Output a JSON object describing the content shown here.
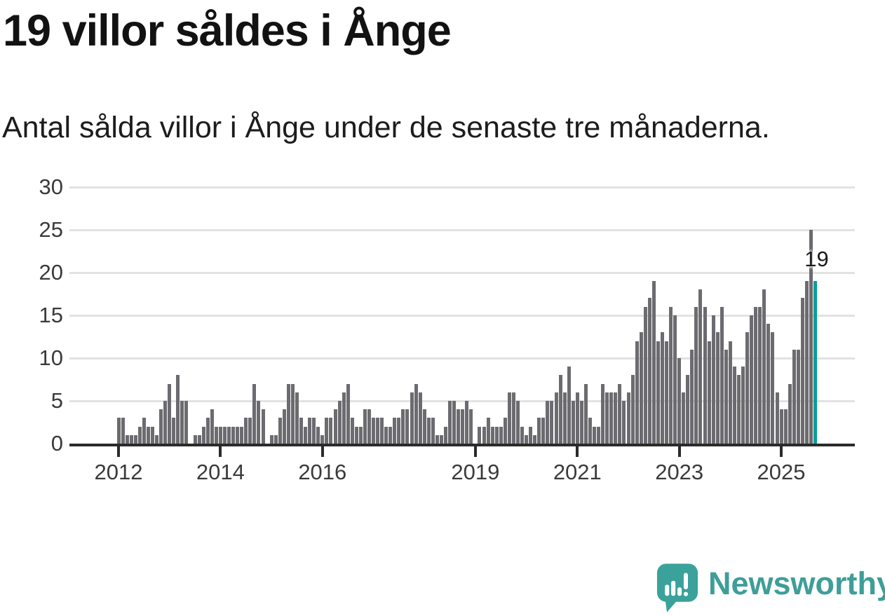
{
  "title": "19 villor såldes i Ånge",
  "subtitle": "Antal sålda villor i Ånge under de senaste tre månaderna.",
  "logo": {
    "wordmark": "Newsworthy"
  },
  "colors": {
    "bar": "#6b6b70",
    "highlight": "#00a19a",
    "gridline": "#e2e2e2",
    "axis": "#2b2b2b",
    "text": "#1c1c1c",
    "tick_text": "#3a3a3a",
    "logo_teal": "#3aa29b"
  },
  "chart_data": {
    "type": "bar",
    "title": "19 villor såldes i Ånge",
    "subtitle": "Antal sålda villor i Ånge under de senaste tre månaderna.",
    "x_start_month": "2012-01",
    "x_end_month": "2025-09",
    "x_unit": "month",
    "ylim": [
      0,
      30
    ],
    "yticks": [
      0,
      5,
      10,
      15,
      20,
      25,
      30
    ],
    "grid": "horizontal",
    "legend": "none",
    "xticks": [
      {
        "label": "2012",
        "month_index": 0
      },
      {
        "label": "2014",
        "month_index": 24
      },
      {
        "label": "2016",
        "month_index": 48
      },
      {
        "label": "2019",
        "month_index": 84
      },
      {
        "label": "2021",
        "month_index": 108
      },
      {
        "label": "2023",
        "month_index": 132
      },
      {
        "label": "2025",
        "month_index": 156
      }
    ],
    "values": [
      3,
      3,
      1,
      1,
      1,
      2,
      3,
      2,
      2,
      1,
      4,
      5,
      7,
      3,
      8,
      5,
      5,
      0,
      1,
      1,
      2,
      3,
      4,
      2,
      2,
      2,
      2,
      2,
      2,
      2,
      3,
      3,
      7,
      5,
      4,
      0,
      1,
      1,
      3,
      4,
      7,
      7,
      6,
      3,
      2,
      3,
      3,
      2,
      1,
      3,
      3,
      4,
      5,
      6,
      7,
      3,
      2,
      2,
      4,
      4,
      3,
      3,
      3,
      2,
      2,
      3,
      3,
      4,
      4,
      6,
      7,
      6,
      4,
      3,
      3,
      1,
      1,
      2,
      5,
      5,
      4,
      4,
      5,
      4,
      0,
      2,
      2,
      3,
      2,
      2,
      2,
      3,
      6,
      6,
      5,
      2,
      1,
      2,
      1,
      3,
      3,
      5,
      5,
      6,
      8,
      6,
      9,
      5,
      6,
      5,
      7,
      3,
      2,
      2,
      7,
      6,
      6,
      6,
      7,
      5,
      6,
      8,
      12,
      13,
      16,
      17,
      19,
      12,
      13,
      12,
      16,
      15,
      10,
      6,
      8,
      11,
      16,
      18,
      16,
      12,
      15,
      13,
      16,
      11,
      12,
      9,
      8,
      9,
      13,
      15,
      16,
      16,
      18,
      14,
      13,
      6,
      4,
      4,
      7,
      11,
      11,
      17,
      19,
      25,
      19
    ],
    "highlight_index": 164,
    "highlight_label": "19"
  }
}
